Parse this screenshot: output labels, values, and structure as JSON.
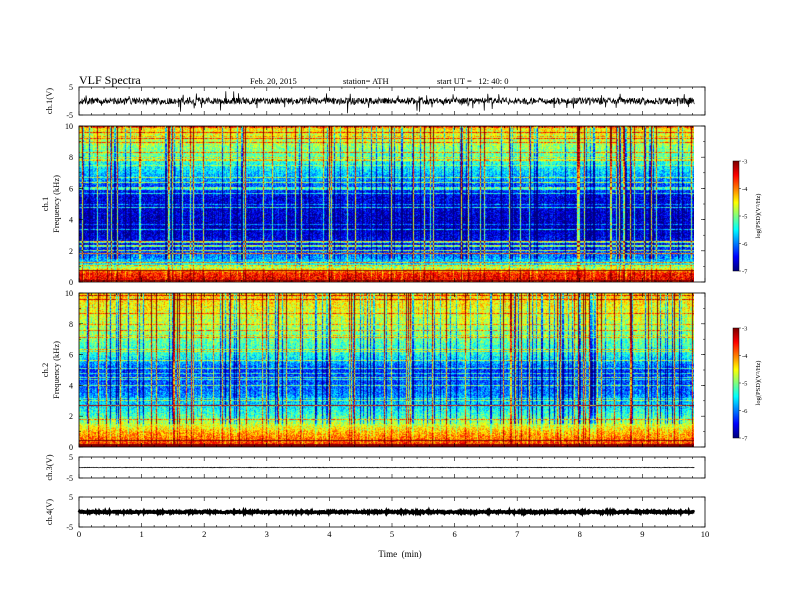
{
  "header": {
    "title": "VLF Spectra",
    "date": "Feb. 20, 2015",
    "station": "station= ATH",
    "start": "start UT =   12: 40: 0"
  },
  "chart_data": [
    {
      "type": "line",
      "panel": "ch1-waveform",
      "ylabel": "ch.1(V)",
      "ylim": [
        -5,
        5
      ],
      "yticks": [
        "5",
        "-5"
      ],
      "xlim": [
        0,
        9.83
      ],
      "baseline": 0.0,
      "noise_amplitude": 1.2,
      "spikes": true,
      "color": "#000000"
    },
    {
      "type": "heatmap",
      "panel": "ch1-spectrogram",
      "ylabel_top": "ch.1",
      "ylabel": "Frequency (kHz)",
      "ylim": [
        0,
        10
      ],
      "yticks": [
        "0",
        "2",
        "4",
        "6",
        "8",
        "10"
      ],
      "xlim": [
        0,
        9.83
      ],
      "colorbar": {
        "label": "log(PSD)(V²/Hz)",
        "range": [
          -7,
          -3
        ],
        "ticks": [
          "-3",
          "-4",
          "-5",
          "-6",
          "-7"
        ]
      },
      "frequency_profile_kHz": [
        {
          "f": 0.0,
          "level": -3.4
        },
        {
          "f": 0.6,
          "level": -3.6
        },
        {
          "f": 1.2,
          "level": -5.6
        },
        {
          "f": 2.2,
          "level": -6.4
        },
        {
          "f": 3.5,
          "level": -6.8
        },
        {
          "f": 5.5,
          "level": -6.6
        },
        {
          "f": 6.6,
          "level": -5.9
        },
        {
          "f": 8.0,
          "level": -5.2
        },
        {
          "f": 10.0,
          "level": -4.4
        }
      ]
    },
    {
      "type": "heatmap",
      "panel": "ch2-spectrogram",
      "ylabel_top": "ch.2",
      "ylabel": "Frequency (kHz)",
      "ylim": [
        0,
        10
      ],
      "yticks": [
        "0",
        "2",
        "4",
        "6",
        "8",
        "10"
      ],
      "xlim": [
        0,
        9.83
      ],
      "colorbar": {
        "label": "log(PSD)(V²/Hz)",
        "range": [
          -7,
          -3
        ],
        "ticks": [
          "-3",
          "-4",
          "-5",
          "-6",
          "-7"
        ]
      },
      "frequency_profile_kHz": [
        {
          "f": 0.0,
          "level": -3.6
        },
        {
          "f": 1.0,
          "level": -4.2
        },
        {
          "f": 2.0,
          "level": -5.2
        },
        {
          "f": 3.5,
          "level": -6.0
        },
        {
          "f": 5.0,
          "level": -6.3
        },
        {
          "f": 6.0,
          "level": -5.4
        },
        {
          "f": 8.0,
          "level": -4.8
        },
        {
          "f": 10.0,
          "level": -4.3
        }
      ]
    },
    {
      "type": "line",
      "panel": "ch3-waveform",
      "ylabel": "ch.3(V)",
      "ylim": [
        -5,
        5
      ],
      "yticks": [
        "5",
        "-5"
      ],
      "xlim": [
        0,
        9.83
      ],
      "baseline": 0.0,
      "noise_amplitude": 0.15,
      "color": "#000000"
    },
    {
      "type": "line",
      "panel": "ch4-waveform",
      "ylabel": "ch.4(V)",
      "ylim": [
        -5,
        5
      ],
      "yticks": [
        "5",
        "-5"
      ],
      "xlim": [
        0,
        9.83
      ],
      "baseline": 0.0,
      "noise_amplitude": 0.25,
      "color": "#000000"
    }
  ],
  "xaxis": {
    "label": "Time  (min)",
    "range": [
      0,
      10
    ],
    "ticks": [
      "0",
      "1",
      "2",
      "3",
      "4",
      "5",
      "6",
      "7",
      "8",
      "9",
      "10"
    ]
  }
}
